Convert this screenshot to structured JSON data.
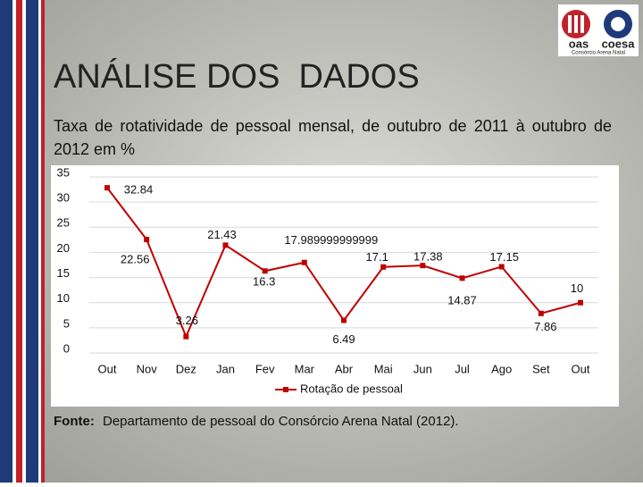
{
  "title": "ANÁLISE DOS  DADOS",
  "subtitle": "Taxa de rotatividade de pessoal mensal, de outubro de 2011 à outubro de 2012 em %",
  "logo": {
    "left": "oas",
    "right": "coesa",
    "caption": "Consórcio Arena Natal"
  },
  "chart_data": {
    "type": "line",
    "categories": [
      "Out",
      "Nov",
      "Dez",
      "Jan",
      "Fev",
      "Mar",
      "Abr",
      "Mai",
      "Jun",
      "Jul",
      "Ago",
      "Set",
      "Out"
    ],
    "series": [
      {
        "name": "Rotação de pessoal",
        "color": "#c00000",
        "values": [
          32.84,
          22.56,
          3.26,
          21.43,
          16.3,
          17.989999999999,
          6.49,
          17.1,
          17.38,
          14.87,
          17.15,
          7.86,
          10
        ]
      }
    ],
    "ylim": [
      0,
      35
    ],
    "yticks": [
      0,
      5,
      10,
      15,
      20,
      25,
      30,
      35
    ],
    "grid": true,
    "legend": "bottom"
  },
  "source": {
    "label": "Fonte:",
    "text": "Departamento de pessoal do Consórcio Arena Natal (2012)."
  }
}
